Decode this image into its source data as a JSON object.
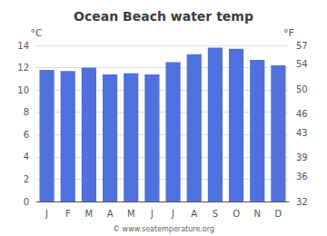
{
  "chart_data": {
    "type": "bar",
    "title": "Ocean Beach water temp",
    "categories": [
      "J",
      "F",
      "M",
      "A",
      "M",
      "J",
      "J",
      "A",
      "S",
      "O",
      "N",
      "D"
    ],
    "values": [
      11.8,
      11.7,
      12.0,
      11.4,
      11.5,
      11.4,
      12.5,
      13.2,
      13.8,
      13.7,
      12.7,
      12.2
    ],
    "ylabel": "°C",
    "ylim": [
      0,
      14
    ],
    "yticks": [
      0,
      2,
      4,
      6,
      8,
      10,
      12,
      14
    ],
    "y2label": "°F",
    "y2lim": [
      32,
      57
    ],
    "y2ticks": [
      32,
      36,
      39,
      43,
      46,
      50,
      54,
      57
    ],
    "annotations": [
      "© www.seatemperature.org"
    ],
    "grid": true
  }
}
